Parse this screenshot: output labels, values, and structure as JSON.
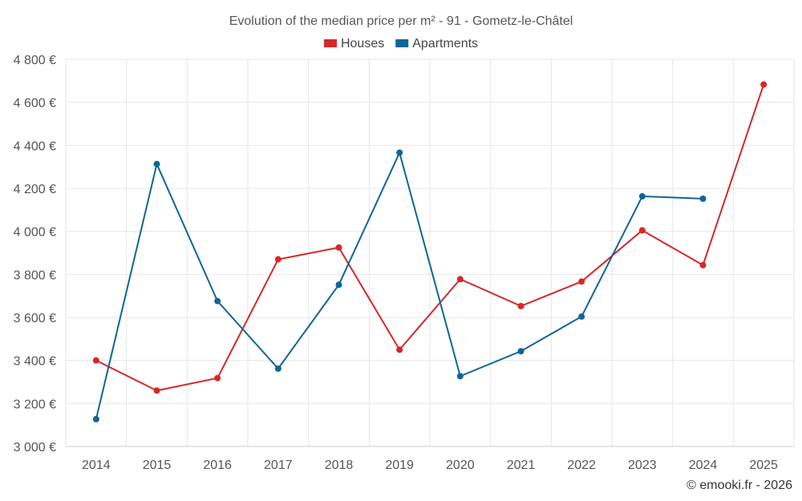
{
  "chart_data": {
    "type": "line",
    "title": "Evolution of the median price per m² - 91 - Gometz-le-Châtel",
    "categories": [
      "2014",
      "2015",
      "2016",
      "2017",
      "2018",
      "2019",
      "2020",
      "2021",
      "2022",
      "2023",
      "2024",
      "2025"
    ],
    "series": [
      {
        "name": "Houses",
        "color": "#d62728",
        "values": [
          3400,
          3260,
          3318,
          3870,
          3925,
          3450,
          3778,
          3653,
          3767,
          4005,
          3843,
          4683
        ]
      },
      {
        "name": "Apartments",
        "color": "#0e6596",
        "values": [
          3127,
          4313,
          3676,
          3362,
          3752,
          4366,
          3327,
          3443,
          3604,
          4163,
          4152,
          null
        ]
      }
    ],
    "ylim": [
      3000,
      4800
    ],
    "yticks": [
      3000,
      3200,
      3400,
      3600,
      3800,
      4000,
      4200,
      4400,
      4600,
      4800
    ],
    "ytick_labels": [
      "3 000 €",
      "3 200 €",
      "3 400 €",
      "3 600 €",
      "3 800 €",
      "4 000 €",
      "4 200 €",
      "4 400 €",
      "4 600 €",
      "4 800 €"
    ],
    "legend_position": "top-center",
    "grid": true,
    "credit": "© emooki.fr - 2026"
  }
}
